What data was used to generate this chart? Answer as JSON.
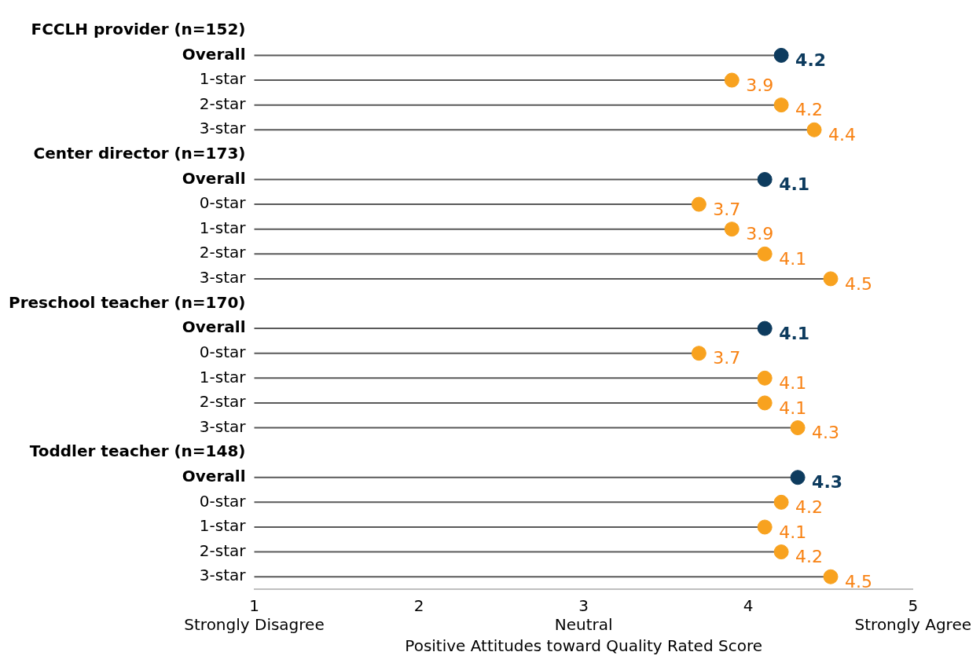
{
  "chart_data": {
    "type": "lollipop",
    "orientation": "horizontal",
    "categories": [
      "FCCLH provider (n=152)",
      "Overall",
      "1-star",
      "2-star",
      "3-star",
      "Center director (n=173)",
      "Overall",
      "0-star",
      "1-star",
      "2-star",
      "3-star",
      "Preschool teacher (n=170)",
      "Overall",
      "0-star",
      "1-star",
      "2-star",
      "3-star",
      "Toddler teacher (n=148)",
      "Overall",
      "0-star",
      "1-star",
      "2-star",
      "3-star"
    ],
    "values": [
      null,
      4.2,
      3.9,
      4.2,
      4.4,
      null,
      4.1,
      3.7,
      3.9,
      4.1,
      4.5,
      null,
      4.1,
      3.7,
      4.1,
      4.1,
      4.3,
      null,
      4.3,
      4.2,
      4.1,
      4.2,
      4.5
    ],
    "colors": [
      null,
      "#0d3b5e",
      "#f8a21f",
      "#f8a21f",
      "#f8a21f",
      null,
      "#0d3b5e",
      "#f8a21f",
      "#f8a21f",
      "#f8a21f",
      "#f8a21f",
      null,
      "#0d3b5e",
      "#f8a21f",
      "#f8a21f",
      "#f8a21f",
      "#f8a21f",
      null,
      "#0d3b5e",
      "#f8a21f",
      "#f8a21f",
      "#f8a21f",
      "#f8a21f"
    ],
    "xlim": [
      1,
      5
    ],
    "xticks": [
      {
        "value": 1,
        "label": "1\nStrongly Disagree"
      },
      2,
      {
        "value": 3,
        "label": "3\nNeutral"
      },
      4,
      {
        "value": 5,
        "label": "5\nStrongly Agree"
      }
    ],
    "xlabel": "Positive Attitudes toward Quality Rated Score",
    "grid": false,
    "legend": false,
    "marker": "circle",
    "data_labels": true
  }
}
